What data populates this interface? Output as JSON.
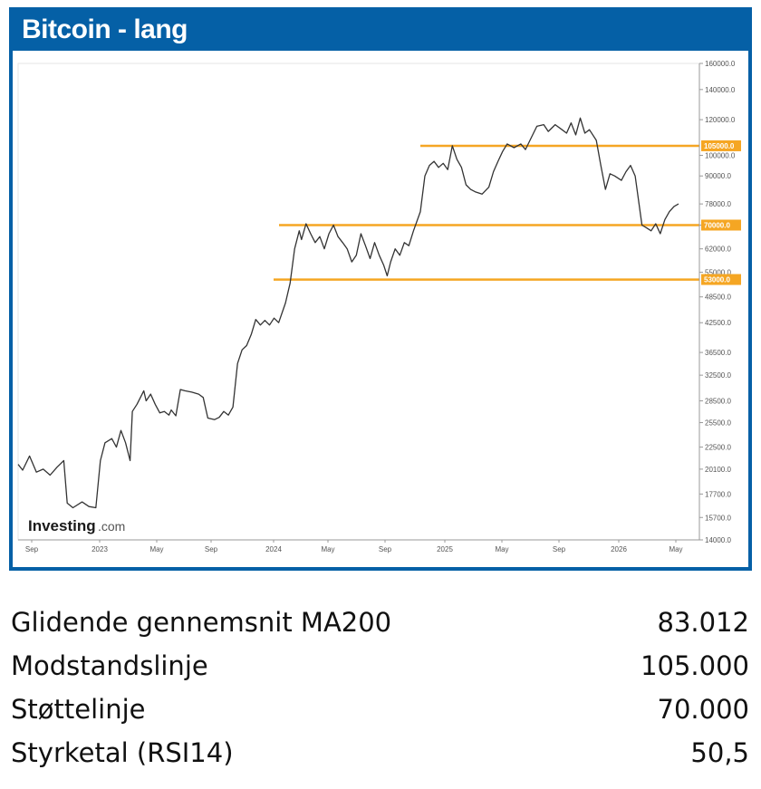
{
  "panel": {
    "title": "Bitcoin - lang"
  },
  "chart_data": {
    "type": "line",
    "title": "Bitcoin - lang",
    "watermark": {
      "brand": "Investing",
      "suffix": ".com"
    },
    "x_ticks": [
      "Sep",
      "2023",
      "May",
      "Sep",
      "2024",
      "May",
      "Sep",
      "2025",
      "May",
      "Sep",
      "2026",
      "May"
    ],
    "y_ticks": [
      "160000.0",
      "140000.0",
      "120000.0",
      "100000.0",
      "90000.0",
      "78000.0",
      "70000.0",
      "62000.0",
      "55000.0",
      "48500.0",
      "42500.0",
      "36500.0",
      "32500.0",
      "28500.0",
      "25500.0",
      "22500.0",
      "20100.0",
      "17700.0",
      "15700.0",
      "14000.0"
    ],
    "y_scale": "log",
    "ylim": [
      14000,
      160000
    ],
    "levels": [
      {
        "label": "105000.0",
        "value": 105000,
        "color": "#f5a623"
      },
      {
        "label": "70000.0",
        "value": 70000,
        "color": "#f5a623"
      },
      {
        "label": "53000.0",
        "value": 53000,
        "color": "#f5a623"
      }
    ],
    "series": [
      {
        "color": "#333333",
        "points": [
          [
            0,
            20600
          ],
          [
            0.2,
            20000
          ],
          [
            0.5,
            21500
          ],
          [
            0.8,
            19800
          ],
          [
            1.1,
            20100
          ],
          [
            1.4,
            19500
          ],
          [
            1.7,
            20300
          ],
          [
            2.0,
            21000
          ],
          [
            2.15,
            16900
          ],
          [
            2.4,
            16500
          ],
          [
            2.8,
            17000
          ],
          [
            3.1,
            16600
          ],
          [
            3.4,
            16500
          ],
          [
            3.6,
            21000
          ],
          [
            3.8,
            23000
          ],
          [
            4.1,
            23500
          ],
          [
            4.3,
            22500
          ],
          [
            4.5,
            24500
          ],
          [
            4.7,
            23000
          ],
          [
            4.9,
            21000
          ],
          [
            5.0,
            27000
          ],
          [
            5.2,
            28000
          ],
          [
            5.5,
            30000
          ],
          [
            5.6,
            28500
          ],
          [
            5.8,
            29500
          ],
          [
            6.0,
            28000
          ],
          [
            6.2,
            26800
          ],
          [
            6.4,
            27000
          ],
          [
            6.6,
            26500
          ],
          [
            6.7,
            27200
          ],
          [
            6.9,
            26400
          ],
          [
            7.1,
            30200
          ],
          [
            7.3,
            30000
          ],
          [
            7.6,
            29800
          ],
          [
            7.9,
            29500
          ],
          [
            8.1,
            29000
          ],
          [
            8.3,
            26100
          ],
          [
            8.6,
            25900
          ],
          [
            8.8,
            26200
          ],
          [
            9.0,
            27000
          ],
          [
            9.2,
            26500
          ],
          [
            9.4,
            27600
          ],
          [
            9.6,
            34500
          ],
          [
            9.8,
            37000
          ],
          [
            10.0,
            37800
          ],
          [
            10.2,
            40000
          ],
          [
            10.4,
            43200
          ],
          [
            10.6,
            42000
          ],
          [
            10.8,
            43000
          ],
          [
            11.0,
            42000
          ],
          [
            11.2,
            43500
          ],
          [
            11.4,
            42500
          ],
          [
            11.7,
            47000
          ],
          [
            11.9,
            52000
          ],
          [
            12.1,
            62000
          ],
          [
            12.3,
            68000
          ],
          [
            12.4,
            65000
          ],
          [
            12.6,
            70500
          ],
          [
            12.8,
            67000
          ],
          [
            13.0,
            64000
          ],
          [
            13.2,
            66000
          ],
          [
            13.4,
            62000
          ],
          [
            13.6,
            67000
          ],
          [
            13.8,
            70000
          ],
          [
            14.0,
            66000
          ],
          [
            14.2,
            64000
          ],
          [
            14.4,
            62000
          ],
          [
            14.6,
            58000
          ],
          [
            14.8,
            60000
          ],
          [
            15.0,
            67000
          ],
          [
            15.2,
            63000
          ],
          [
            15.4,
            59000
          ],
          [
            15.6,
            64000
          ],
          [
            15.8,
            60000
          ],
          [
            16.0,
            57000
          ],
          [
            16.15,
            54000
          ],
          [
            16.3,
            58000
          ],
          [
            16.5,
            62000
          ],
          [
            16.7,
            60000
          ],
          [
            16.9,
            64000
          ],
          [
            17.1,
            63000
          ],
          [
            17.3,
            68000
          ],
          [
            17.6,
            75000
          ],
          [
            17.8,
            90000
          ],
          [
            18.0,
            95000
          ],
          [
            18.2,
            97000
          ],
          [
            18.4,
            94000
          ],
          [
            18.6,
            96000
          ],
          [
            18.8,
            93000
          ],
          [
            19.0,
            105000
          ],
          [
            19.2,
            98000
          ],
          [
            19.4,
            94000
          ],
          [
            19.6,
            86000
          ],
          [
            19.8,
            84000
          ],
          [
            20.0,
            83000
          ],
          [
            20.3,
            82000
          ],
          [
            20.6,
            85000
          ],
          [
            20.8,
            92000
          ],
          [
            21.0,
            97000
          ],
          [
            21.2,
            102000
          ],
          [
            21.4,
            106000
          ],
          [
            21.7,
            104000
          ],
          [
            22.0,
            106000
          ],
          [
            22.2,
            103000
          ],
          [
            22.4,
            108000
          ],
          [
            22.7,
            116000
          ],
          [
            23.0,
            117000
          ],
          [
            23.2,
            113000
          ],
          [
            23.5,
            117000
          ],
          [
            23.8,
            114000
          ],
          [
            24.0,
            112000
          ],
          [
            24.2,
            118000
          ],
          [
            24.4,
            111000
          ],
          [
            24.6,
            121000
          ],
          [
            24.8,
            112000
          ],
          [
            25.0,
            114000
          ],
          [
            25.3,
            108000
          ],
          [
            25.5,
            95000
          ],
          [
            25.7,
            84000
          ],
          [
            25.9,
            91000
          ],
          [
            26.1,
            90000
          ],
          [
            26.4,
            88000
          ],
          [
            26.6,
            92000
          ],
          [
            26.8,
            95000
          ],
          [
            27.0,
            90000
          ],
          [
            27.3,
            70000
          ],
          [
            27.5,
            69000
          ],
          [
            27.7,
            68000
          ],
          [
            27.9,
            70500
          ],
          [
            28.1,
            67000
          ],
          [
            28.3,
            72000
          ],
          [
            28.5,
            75000
          ],
          [
            28.7,
            77000
          ],
          [
            28.9,
            78000
          ]
        ]
      }
    ]
  },
  "stats": [
    {
      "label": "Glidende gennemsnit MA200",
      "value": "83.012"
    },
    {
      "label": "Modstandslinje",
      "value": "105.000"
    },
    {
      "label": "Støttelinje",
      "value": "70.000"
    },
    {
      "label": "Styrketal (RSI14)",
      "value": "50,5"
    }
  ]
}
